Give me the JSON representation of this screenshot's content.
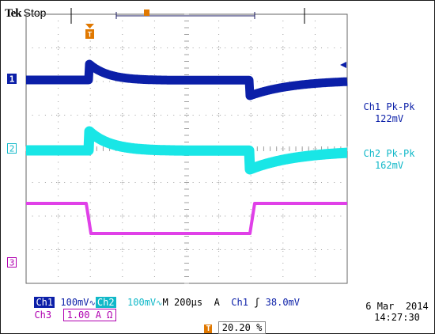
{
  "header": {
    "brand": "Tek",
    "run_state": "Stop"
  },
  "colors": {
    "ch1": "#0b1fa8",
    "ch2": "#19e6e6",
    "ch2_text": "#10b8c8",
    "ch3": "#e040e8",
    "ch3_text": "#b000b0",
    "trigger": "#e07800",
    "grid": "#a0a0a0"
  },
  "markers": {
    "ch1": "1",
    "ch2": "2",
    "ch3": "3",
    "trigger": "T"
  },
  "measurements": [
    {
      "label": "Ch1 Pk-Pk",
      "value": "122mV"
    },
    {
      "label": "Ch2 Pk-Pk",
      "value": "162mV"
    }
  ],
  "status": {
    "ch1_label": "Ch1",
    "ch1_scale": "100mV",
    "ch2_label": "Ch2",
    "ch2_scale": "100mV",
    "timebase": "M 200µs",
    "trigger_mode": "A",
    "trigger_source": "Ch1",
    "trigger_slope_icon": "rising-edge-icon",
    "trigger_level": "38.0mV",
    "ch3_label": "Ch3",
    "ch3_scale": "1.00 A Ω",
    "trigger_position": "20.20 %",
    "date": "6 Mar  2014",
    "time": "14:27:30"
  }
}
